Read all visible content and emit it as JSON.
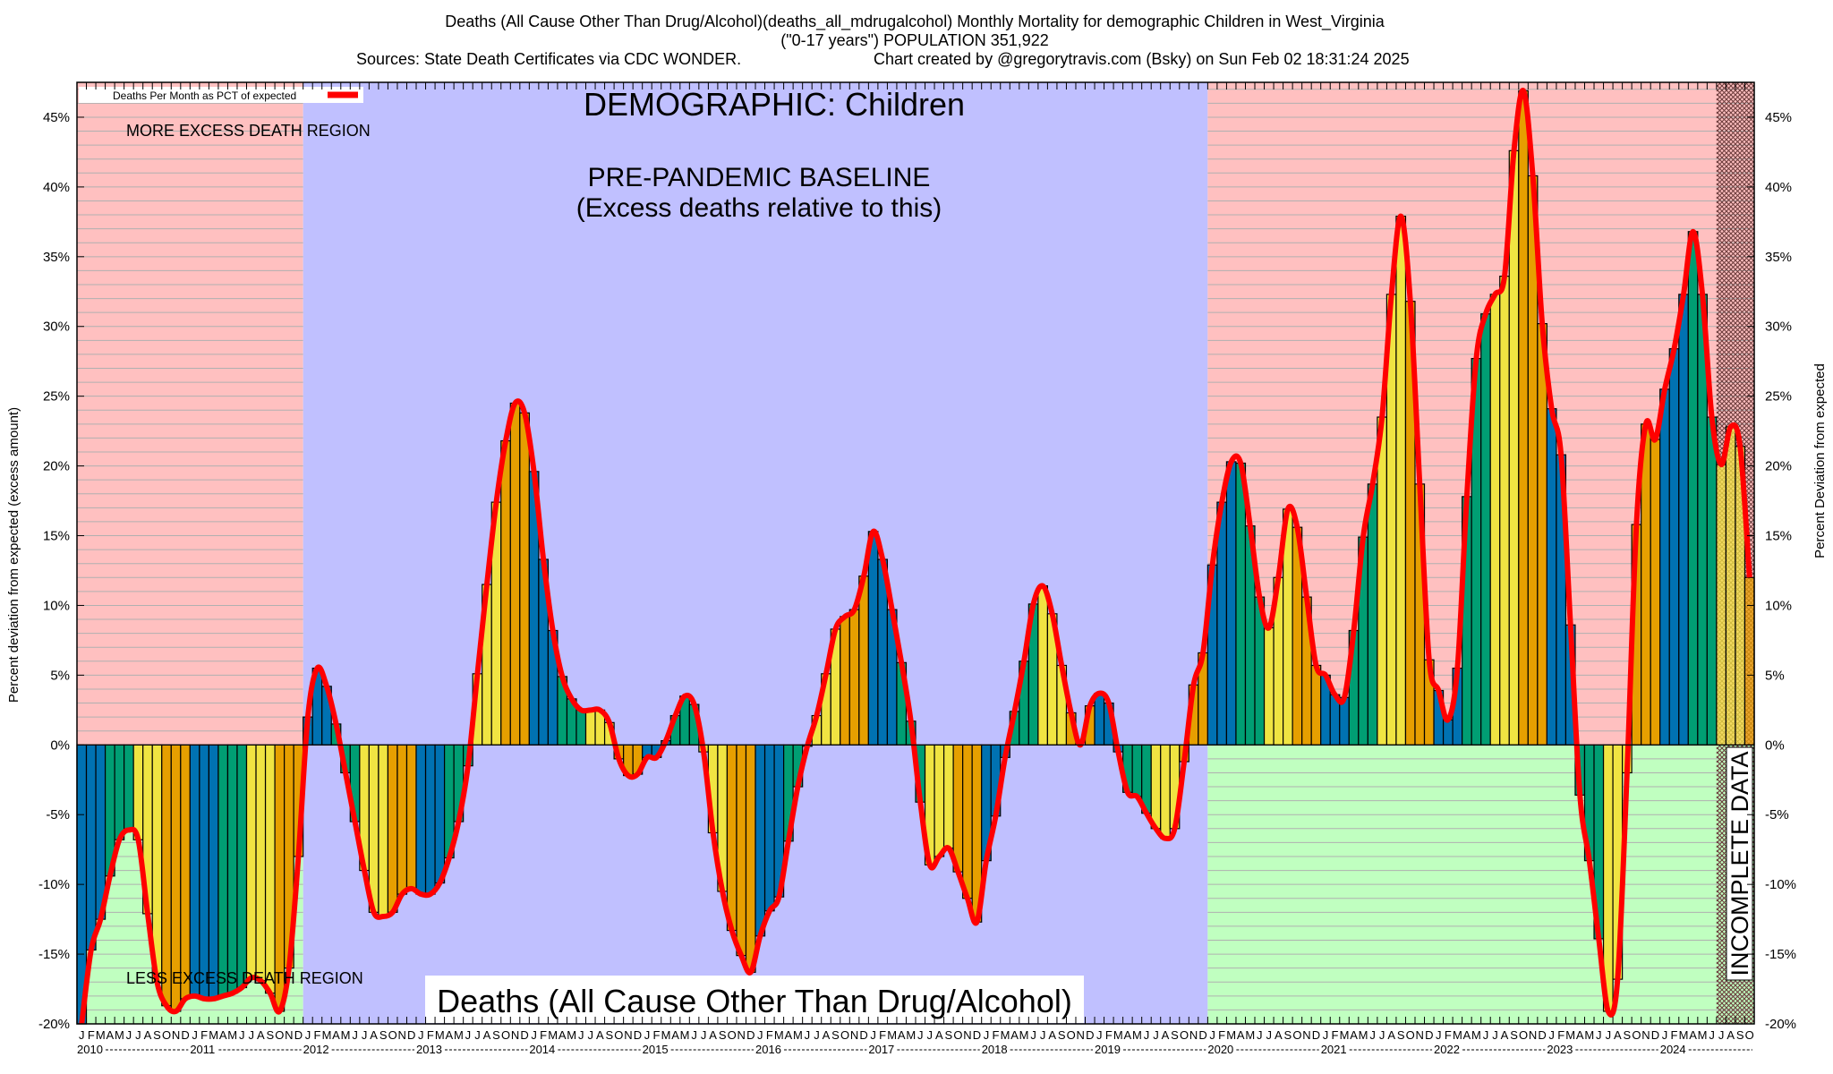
{
  "title": {
    "line1": "Deaths (All Cause Other Than Drug/Alcohol)(deaths_all_mdrugalcohol) Monthly Mortality for demographic Children in West_Virginia",
    "line2": "(\"0-17 years\") POPULATION 351,922",
    "sources": "Sources: State Death Certificates via CDC WONDER.",
    "credit": "Chart created by @gregorytravis.com (Bsky) on Sun Feb 02 18:31:24 2025"
  },
  "annotations": {
    "demographic": "DEMOGRAPHIC: Children",
    "baseline_title": "PRE-PANDEMIC BASELINE",
    "baseline_sub": "(Excess deaths relative to this)",
    "more_region": "MORE EXCESS DEATH REGION",
    "less_region": "LESS EXCESS DEATH REGION",
    "cause_label": "Deaths (All Cause Other Than Drug/Alcohol)",
    "incomplete": "INCOMPLETE DATA"
  },
  "chart_data": {
    "type": "bar",
    "title": "Deaths (All Cause Other Than Drug/Alcohol) Monthly Mortality for demographic Children in West_Virginia",
    "start_month": "2010-01",
    "end_month": "2024-10",
    "ylabel": "Percent deviation from expected (excess amount)",
    "ylabel_right": "Percent Deviation from expected",
    "ylim": [
      -20,
      47.5
    ],
    "y_ticks": [
      -20,
      -15,
      -10,
      -5,
      0,
      5,
      10,
      15,
      20,
      25,
      30,
      35,
      40,
      45
    ],
    "y_tick_labels": [
      "-20%",
      "-15%",
      "-10%",
      "-5%",
      "0%",
      "5%",
      "10%",
      "15%",
      "20%",
      "25%",
      "30%",
      "35%",
      "40%",
      "45%"
    ],
    "month_letters": [
      "J",
      "F",
      "M",
      "A",
      "M",
      "J",
      "J",
      "A",
      "S",
      "O",
      "N",
      "D"
    ],
    "years": [
      "2010",
      "2011",
      "2012",
      "2013",
      "2014",
      "2015",
      "2016",
      "2017",
      "2018",
      "2019",
      "2020",
      "2021",
      "2022",
      "2023",
      "2024"
    ],
    "legend": {
      "label": "Deaths Per Month as PCT of expected",
      "placement": "top-left"
    },
    "series_color": "#ff0000",
    "quarter_colors": [
      "#0072b2",
      "#009e73",
      "#f0e442",
      "#e69f00"
    ],
    "region_colors": {
      "excess": "#ffc0c0",
      "deficit": "#c0ffc0",
      "baseline": "#c0c0ff"
    },
    "baseline_period": [
      "2012-01",
      "2019-12"
    ],
    "incomplete_period": [
      "2024-07",
      "2024-10"
    ],
    "values": [
      -20,
      -14.7,
      -12.5,
      -9.4,
      -6.8,
      -6.1,
      -6.8,
      -12.1,
      -17,
      -18.7,
      -19.1,
      -18.2,
      -18,
      -18.2,
      -18.2,
      -18,
      -17.8,
      -17.4,
      -16.7,
      -16.9,
      -17.8,
      -19.1,
      -16,
      -8,
      2,
      5.5,
      4.2,
      1.5,
      -2,
      -5.5,
      -9,
      -12,
      -12.3,
      -12,
      -10.7,
      -10.3,
      -10.7,
      -10.7,
      -9.9,
      -8.1,
      -5.5,
      -1.5,
      5.1,
      11.5,
      17.4,
      21.8,
      24.5,
      23.8,
      19.6,
      13.3,
      8.2,
      4.9,
      3.3,
      2.5,
      2.5,
      2.5,
      1.6,
      -1,
      -2.2,
      -2.1,
      -0.9,
      -0.9,
      0.3,
      2.1,
      3.5,
      2.9,
      -0.5,
      -6.3,
      -10.5,
      -13.3,
      -15.1,
      -16.3,
      -13.7,
      -11.9,
      -10.9,
      -6.9,
      -3,
      -0.1,
      2.1,
      5.1,
      8.3,
      9.2,
      9.7,
      12.1,
      15.3,
      13.3,
      9.7,
      5.9,
      1.7,
      -4.1,
      -8.6,
      -8.0,
      -7.4,
      -9.1,
      -11,
      -12.7,
      -8.3,
      -5.1,
      -0.9,
      2.4,
      6,
      10.1,
      11.4,
      9.4,
      5.7,
      2.3,
      0,
      2.8,
      3.7,
      3.0,
      -0.5,
      -3.4,
      -3.7,
      -4.9,
      -6.0,
      -6.7,
      -6.0,
      -1.2,
      4.3,
      6.6,
      12.9,
      17.4,
      20.3,
      20.2,
      15.7,
      10.6,
      8.4,
      12,
      16.9,
      15.6,
      10.6,
      5.7,
      5,
      3.6,
      3.4,
      8.2,
      14.9,
      18.7,
      23.5,
      32.3,
      37.9,
      31.8,
      18.7,
      6.1,
      3.9,
      1.8,
      5.5,
      17.8,
      27.7,
      30.9,
      32.3,
      33.6,
      42.6,
      46.9,
      40.8,
      30.2,
      24.1,
      20.8,
      8.6,
      -3.6,
      -8.3,
      -13.9,
      -19.1,
      -16.8,
      -2,
      15.8,
      23,
      21.9,
      25.5,
      28.4,
      32.3,
      36.8,
      32.3,
      23.5,
      20.1,
      22.8,
      21.4,
      12.0
    ]
  }
}
